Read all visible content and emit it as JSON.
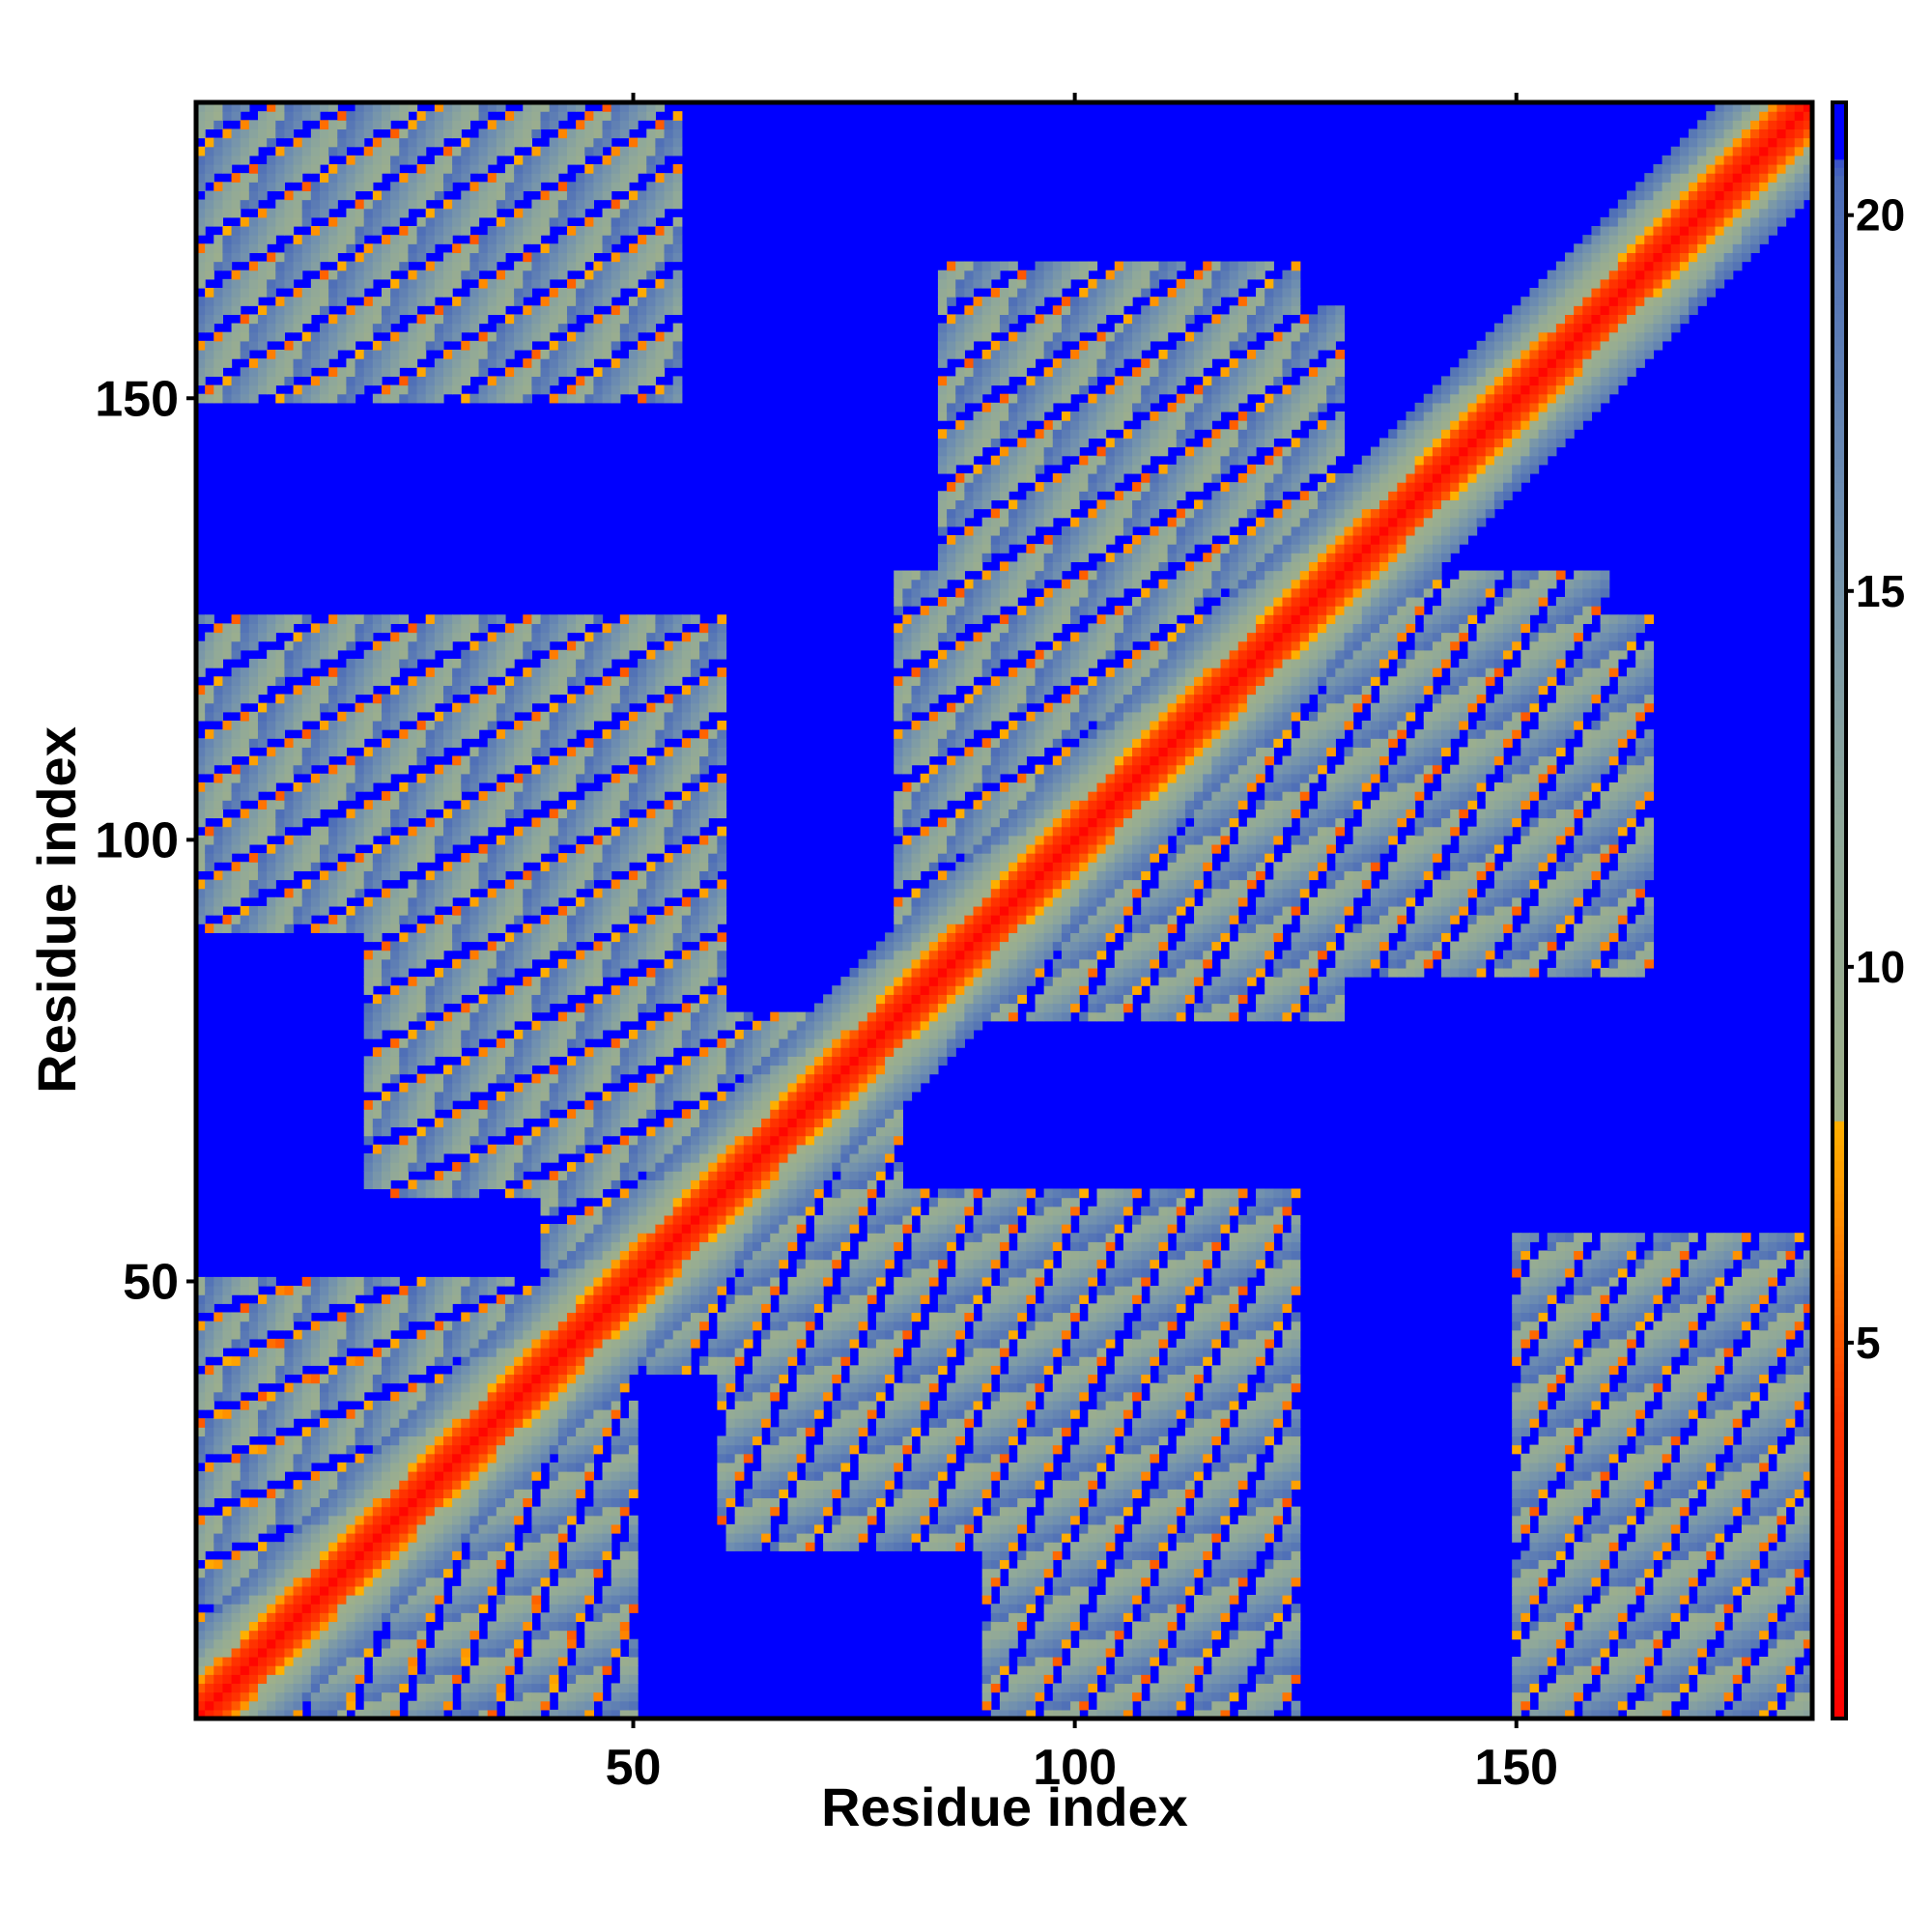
{
  "chart_data": {
    "type": "heatmap",
    "title": "",
    "xlabel": "Residue index",
    "ylabel": "Residue index",
    "n_residues": 183,
    "xlim": [
      1,
      183
    ],
    "ylim": [
      1,
      183
    ],
    "x_ticks": [
      50,
      100,
      150
    ],
    "y_ticks": [
      50,
      100,
      150
    ],
    "colorbar": {
      "ticks": [
        5,
        10,
        15,
        20
      ],
      "range": [
        0,
        21.5
      ],
      "colors": [
        {
          "stop": 0.0,
          "color": "#ff0000"
        },
        {
          "stop": 4.0,
          "color": "#ff3300"
        },
        {
          "stop": 7.0,
          "color": "#ff9900"
        },
        {
          "stop": 8.0,
          "color": "#ffb000"
        },
        {
          "stop": 8.0,
          "color": "#9fb08a"
        },
        {
          "stop": 12.0,
          "color": "#8fa89a"
        },
        {
          "stop": 16.0,
          "color": "#6f8fb0"
        },
        {
          "stop": 20.5,
          "color": "#4a6ab8"
        },
        {
          "stop": 21.5,
          "color": "#0000ff"
        }
      ]
    },
    "background_color": "#0000ff",
    "description_of_values": "pairwise residue distance map, symmetric; diagonal near 0, far pairs saturate at max",
    "contact_regions": [
      {
        "i": [
          1,
          183
        ],
        "j": [
          1,
          183
        ],
        "kind": "diagonal",
        "width": 12
      },
      {
        "i": [
          1,
          50
        ],
        "j": [
          1,
          50
        ],
        "kind": "block"
      },
      {
        "i": [
          1,
          25
        ],
        "j": [
          155,
          183
        ],
        "kind": "block"
      },
      {
        "i": [
          30,
          50
        ],
        "j": [
          150,
          183
        ],
        "kind": "block"
      },
      {
        "i": [
          1,
          60
        ],
        "j": [
          90,
          125
        ],
        "kind": "block"
      },
      {
        "i": [
          25,
          60
        ],
        "j": [
          60,
          85
        ],
        "kind": "block"
      },
      {
        "i": [
          60,
          100
        ],
        "j": [
          20,
          60
        ],
        "kind": "block"
      },
      {
        "i": [
          80,
          130
        ],
        "j": [
          80,
          130
        ],
        "kind": "block"
      },
      {
        "i": [
          85,
          125
        ],
        "j": [
          130,
          165
        ],
        "kind": "block"
      },
      {
        "i": [
          135,
          160
        ],
        "j": [
          90,
          130
        ],
        "kind": "block"
      },
      {
        "i": [
          150,
          183
        ],
        "j": [
          1,
          55
        ],
        "kind": "block"
      },
      {
        "i": [
          95,
          120
        ],
        "j": [
          1,
          50
        ],
        "kind": "block"
      },
      {
        "i": [
          40,
          80
        ],
        "j": [
          40,
          80
        ],
        "kind": "block"
      }
    ]
  }
}
